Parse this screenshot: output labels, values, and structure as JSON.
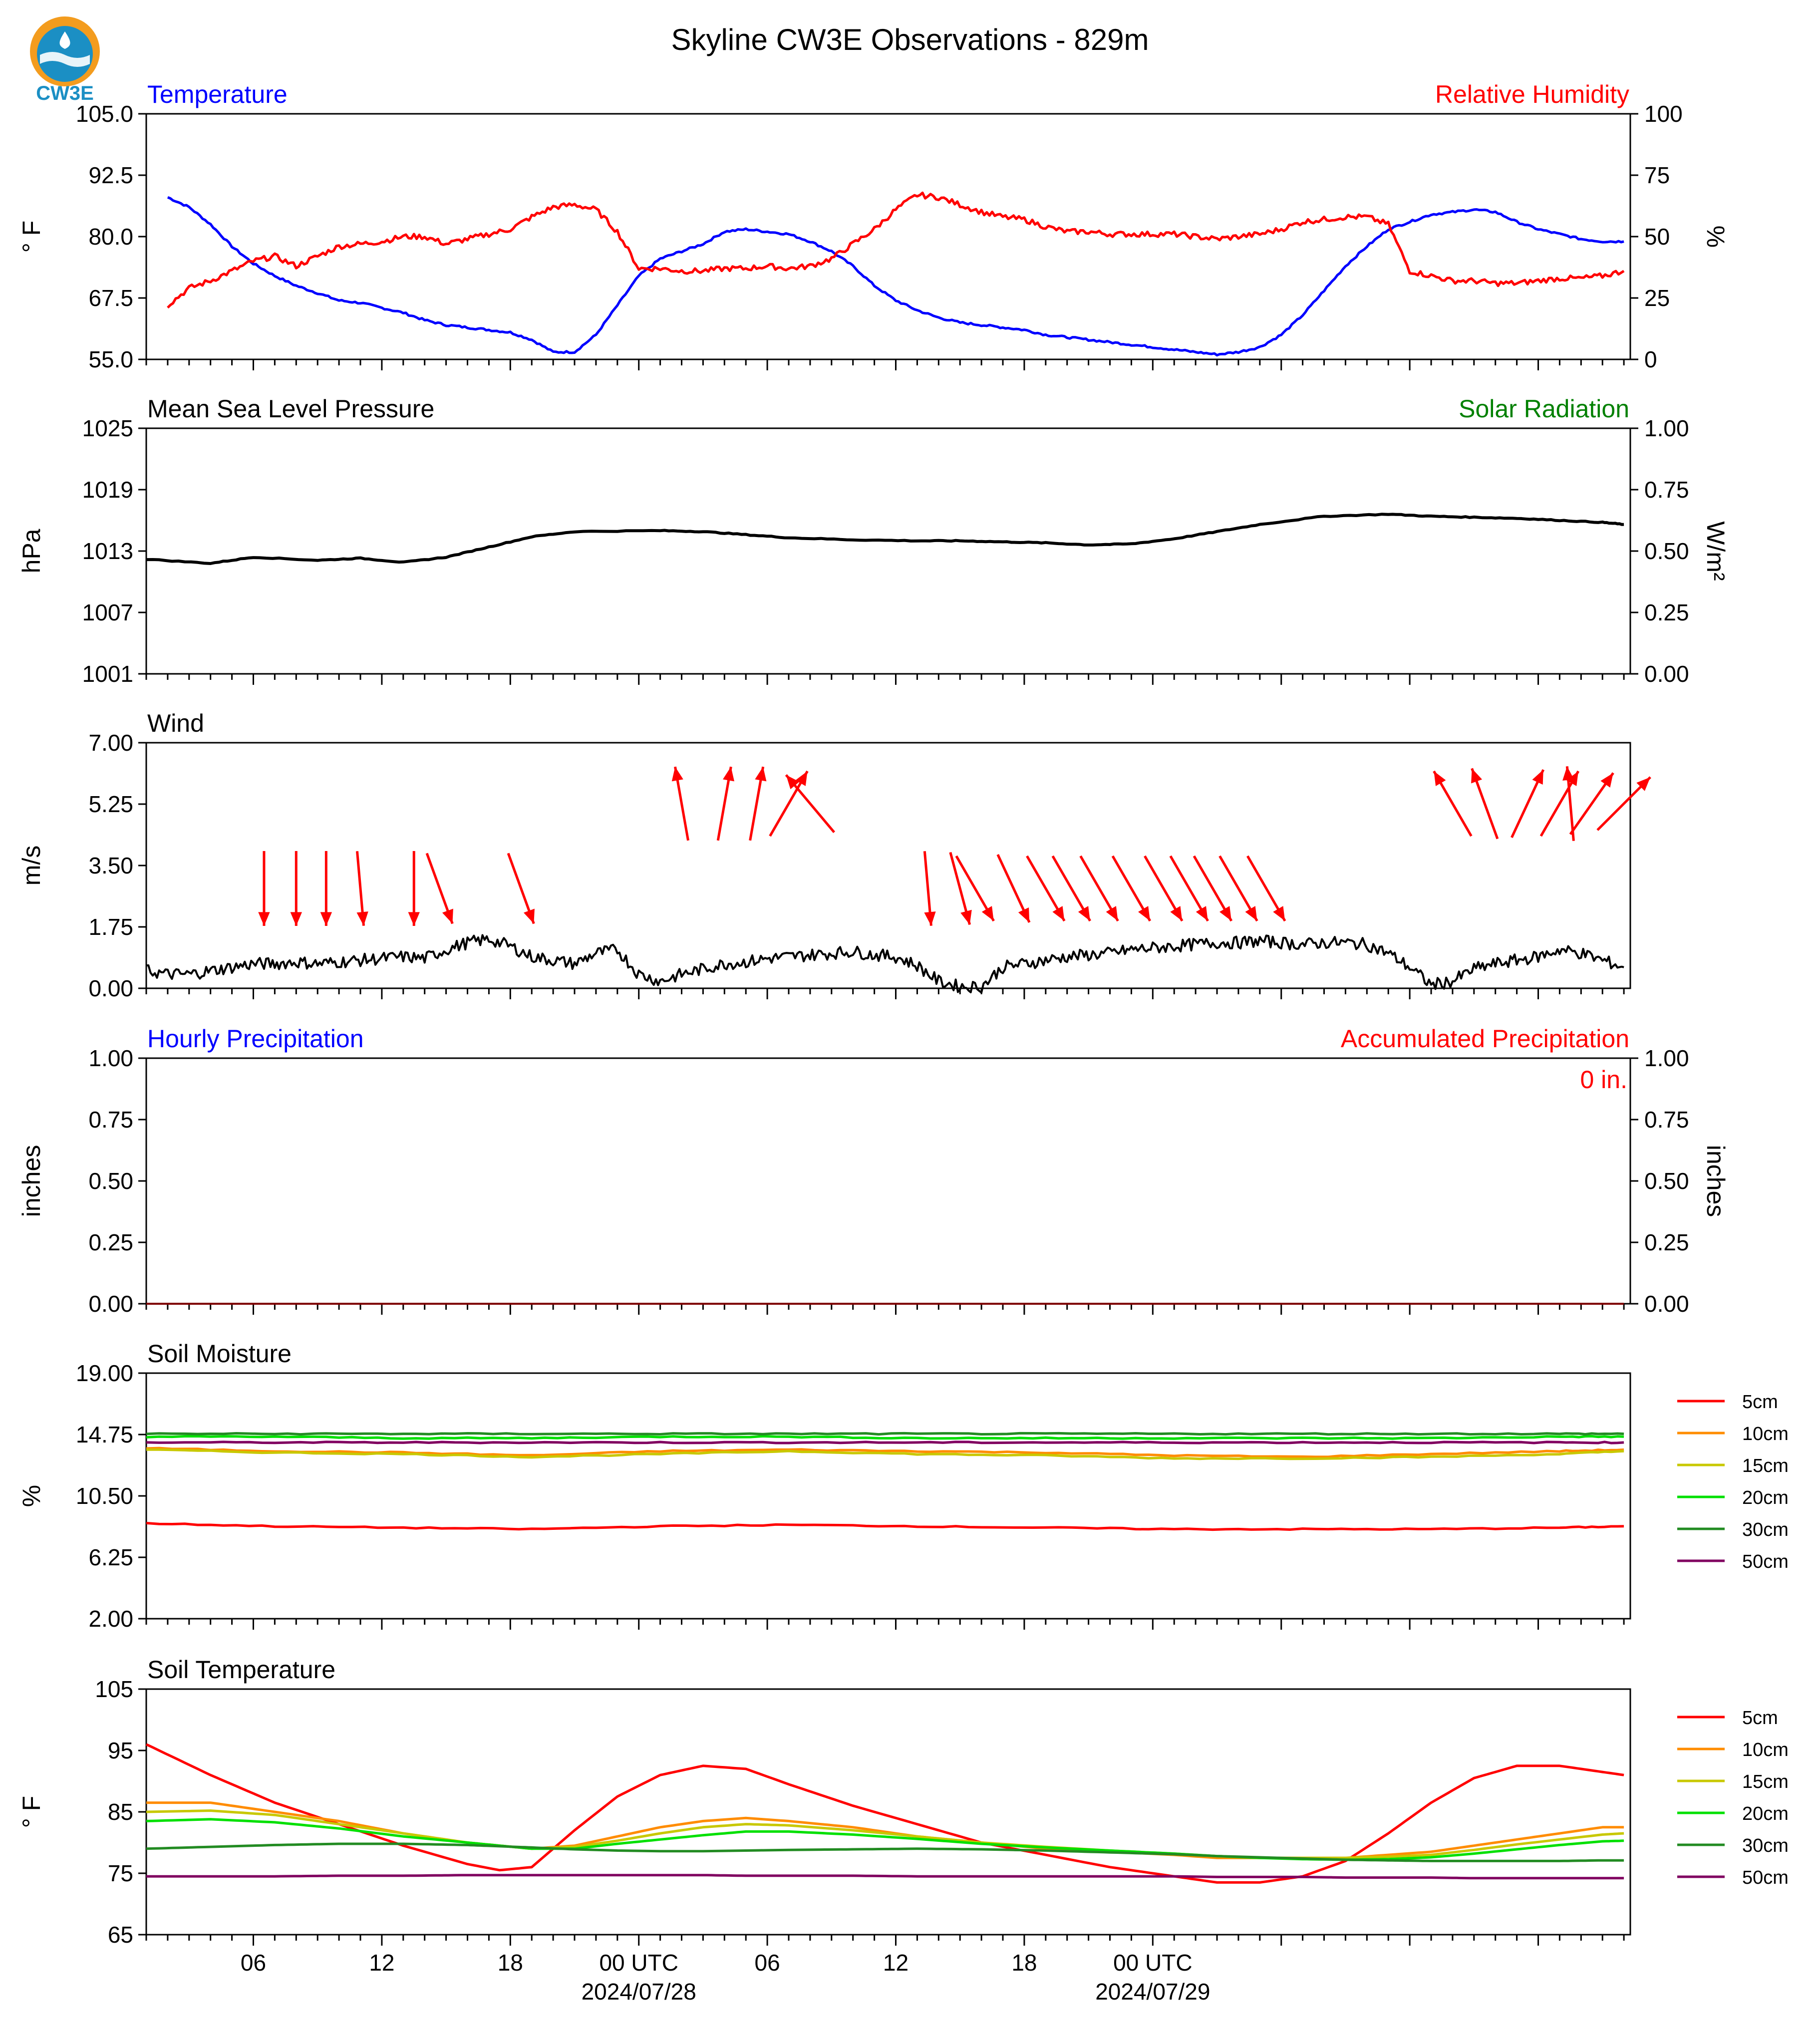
{
  "figure": {
    "title": "Skyline CW3E Observations - 829m",
    "logo_text": "CW3E",
    "x_tick_labels": [
      "06",
      "12",
      "18",
      "00 UTC",
      "06",
      "12",
      "18",
      "00 UTC"
    ],
    "x_date_labels": [
      "2024/07/28",
      "2024/07/29"
    ]
  },
  "colors": {
    "temperature": "#0000ff",
    "humidity": "#ff0000",
    "solar": "#008000",
    "black": "#000000",
    "5cm": "#ff0000",
    "10cm": "#ff8c00",
    "15cm": "#c8c800",
    "20cm": "#00e000",
    "30cm": "#228b22",
    "50cm": "#800060"
  },
  "chart_data": [
    {
      "type": "line",
      "title_left": "Temperature",
      "title_right": "Relative Humidity",
      "ylabel_left": "° F",
      "ylabel_right": "%",
      "ylim_left": [
        55,
        105
      ],
      "ylim_right": [
        0,
        100
      ],
      "yticks_left": [
        "55.0",
        "67.5",
        "80.0",
        "92.5",
        "105.0"
      ],
      "yticks_right": [
        "0",
        "25",
        "50",
        "75",
        "100"
      ],
      "x_hours": [
        1,
        2,
        3,
        4,
        5,
        6,
        7,
        8,
        9,
        10,
        11,
        12,
        13,
        14,
        15,
        16,
        17,
        18,
        19,
        20,
        21,
        22,
        23,
        24,
        25,
        26,
        27,
        28,
        29,
        30,
        31,
        32,
        33,
        34,
        35,
        36,
        37,
        38,
        39,
        40,
        41,
        42,
        43,
        44,
        45,
        46,
        47,
        48,
        49
      ],
      "series": [
        {
          "name": "Temperature",
          "axis": "left",
          "values": [
            88,
            86,
            82.5,
            78,
            74.5,
            72,
            70,
            68.5,
            67,
            66.5,
            65.5,
            64.5,
            63,
            62,
            61.5,
            61,
            60.5,
            59,
            56.5,
            56.5,
            60,
            66,
            72,
            75.5,
            77,
            78.5,
            81,
            81.5,
            81,
            80.5,
            79,
            77,
            74,
            70,
            67,
            65,
            63.5,
            62.5,
            62,
            61.5,
            61,
            60,
            59.5,
            59,
            58.5,
            58,
            57.5,
            57,
            56.5
          ]
        },
        {
          "name": "Relative Humidity",
          "axis": "right",
          "values": [
            22,
            29,
            32,
            36,
            40,
            42,
            38,
            42,
            46,
            47,
            48,
            50,
            50,
            47,
            49,
            51,
            53,
            58,
            62,
            63,
            61,
            52,
            37,
            37,
            36,
            36,
            37,
            37,
            38,
            37,
            38,
            41,
            47,
            53,
            61,
            67,
            66,
            63,
            60,
            58,
            57,
            54,
            52,
            52,
            51,
            51,
            51,
            51,
            50
          ]
        }
      ],
      "extra_x_hours": [
        50,
        51,
        52,
        53,
        54,
        55,
        56,
        57,
        58,
        59,
        60,
        61,
        62,
        63,
        64,
        65,
        66,
        67,
        68,
        69
      ],
      "extra_values": {
        "Temperature": [
          56,
          56.5,
          57.5,
          60,
          64,
          69,
          74,
          78,
          81.5,
          83,
          84.5,
          85,
          85.5,
          85,
          83,
          81.5,
          80.5,
          79.5,
          79,
          79
        ],
        "Relative Humidity": [
          49,
          50,
          51,
          53,
          56,
          57,
          58,
          58,
          55,
          36,
          34,
          32,
          32,
          31,
          31,
          32,
          33,
          33,
          34,
          36
        ]
      }
    },
    {
      "type": "line",
      "title_left": "Mean Sea Level Pressure",
      "title_right": "Solar Radiation",
      "ylabel_left": "hPa",
      "ylabel_right": "W/m²",
      "ylim_left": [
        1001,
        1025
      ],
      "ylim_right": [
        0,
        1
      ],
      "yticks_left": [
        "1001",
        "1007",
        "1013",
        "1019",
        "1025"
      ],
      "yticks_right": [
        "0.00",
        "0.25",
        "0.50",
        "0.75",
        "1.00"
      ],
      "x_hours": [
        0,
        3,
        5,
        8,
        10,
        12,
        14,
        16,
        18,
        20,
        24,
        26,
        28,
        30,
        33,
        36,
        38,
        40,
        42,
        44,
        46,
        48,
        50,
        52,
        55,
        58,
        60,
        62,
        64,
        66,
        68,
        69
      ],
      "series": [
        {
          "name": "Mean Sea Level Pressure",
          "axis": "left",
          "values": [
            1012.2,
            1011.8,
            1012.4,
            1012.1,
            1012.3,
            1011.9,
            1012.4,
            1013.4,
            1014.4,
            1014.9,
            1015.0,
            1014.9,
            1014.6,
            1014.3,
            1014.1,
            1014.0,
            1014.0,
            1013.9,
            1013.8,
            1013.6,
            1013.7,
            1014.2,
            1014.9,
            1015.6,
            1016.4,
            1016.6,
            1016.4,
            1016.3,
            1016.2,
            1016.0,
            1015.8,
            1015.6
          ]
        }
      ]
    },
    {
      "type": "line",
      "title_left": "Wind",
      "ylabel_left": "m/s",
      "ylim_left": [
        0,
        7
      ],
      "yticks_left": [
        "0.00",
        "1.75",
        "3.50",
        "5.25",
        "7.00"
      ],
      "x_hours": [
        0,
        1,
        2,
        3,
        4,
        5,
        6,
        7,
        8,
        9,
        10,
        11,
        12,
        13,
        14,
        15,
        16,
        17,
        18,
        19,
        20,
        21,
        22,
        23,
        24,
        25,
        26,
        27,
        28,
        29,
        30,
        31,
        32,
        33,
        34,
        35,
        36,
        37,
        38,
        39,
        40,
        41,
        42,
        43,
        44,
        45,
        46,
        47,
        48,
        49,
        50,
        51,
        52,
        53,
        54,
        55,
        56,
        57,
        58,
        59,
        60,
        61,
        62,
        63,
        64,
        65,
        66,
        67,
        68,
        69
      ],
      "series": [
        {
          "name": "Wind speed",
          "axis": "left",
          "values": [
            0.5,
            0.4,
            0.4,
            0.5,
            0.6,
            0.7,
            0.7,
            0.75,
            0.7,
            0.75,
            0.8,
            0.85,
            0.9,
            0.85,
            1.1,
            1.3,
            1.4,
            1.2,
            0.9,
            0.8,
            0.7,
            1.0,
            1.1,
            0.4,
            0.2,
            0.4,
            0.55,
            0.7,
            0.75,
            0.85,
            0.9,
            0.95,
            1.0,
            1.05,
            0.95,
            0.9,
            0.65,
            0.2,
            0.05,
            0.05,
            0.6,
            0.7,
            0.8,
            0.9,
            0.95,
            1.0,
            1.1,
            1.15,
            1.2,
            1.25,
            1.3,
            1.3,
            1.35,
            1.3,
            1.25,
            1.3,
            1.3,
            1.25,
            1.0,
            0.6,
            0.1,
            0.2,
            0.55,
            0.7,
            0.8,
            0.9,
            1.1,
            1.0,
            0.8,
            0.6
          ]
        }
      ],
      "barb_hours": [
        5.5,
        7,
        8.4,
        10,
        12.5,
        13.7,
        17.5,
        25,
        27,
        28.5,
        30,
        31,
        36.5,
        38,
        38.7,
        40.5,
        42,
        43.2,
        44.5,
        46,
        47.5,
        48.7,
        49.8,
        51,
        52.3,
        61,
        62.5,
        64.5,
        66,
        66.5,
        67.5,
        69
      ],
      "barb_dirs_deg": [
        180,
        180,
        180,
        175,
        180,
        160,
        160,
        350,
        10,
        10,
        30,
        320,
        175,
        165,
        150,
        155,
        150,
        150,
        150,
        150,
        150,
        150,
        150,
        150,
        150,
        330,
        340,
        25,
        30,
        355,
        35,
        45
      ]
    },
    {
      "type": "line",
      "title_left": "Hourly Precipitation",
      "title_right": "Accumulated Precipitation",
      "annotation": "0 in.",
      "ylabel_left": "inches",
      "ylabel_right": "inches",
      "ylim_left": [
        0,
        1
      ],
      "ylim_right": [
        0,
        1
      ],
      "yticks_left": [
        "0.00",
        "0.25",
        "0.50",
        "0.75",
        "1.00"
      ],
      "yticks_right": [
        "0.00",
        "0.25",
        "0.50",
        "0.75",
        "1.00"
      ],
      "x_hours": [
        0,
        69
      ],
      "series": [
        {
          "name": "Accumulated Precipitation",
          "axis": "left",
          "values": [
            0,
            0
          ]
        }
      ]
    },
    {
      "type": "line",
      "title_left": "Soil Moisture",
      "ylabel_left": "%",
      "ylim_left": [
        2,
        19
      ],
      "yticks_left": [
        "2.00",
        "6.25",
        "10.50",
        "14.75",
        "19.00"
      ],
      "legend": [
        "5cm",
        "10cm",
        "15cm",
        "20cm",
        "30cm",
        "50cm"
      ],
      "legend_placement": "right",
      "x_hours": [
        0,
        6,
        12,
        18,
        24,
        30,
        36,
        42,
        48,
        54,
        60,
        66,
        69
      ],
      "series": [
        {
          "name": "5cm",
          "values": [
            8.6,
            8.4,
            8.3,
            8.2,
            8.4,
            8.5,
            8.4,
            8.3,
            8.2,
            8.2,
            8.2,
            8.3,
            8.4
          ]
        },
        {
          "name": "10cm",
          "values": [
            13.8,
            13.6,
            13.5,
            13.3,
            13.6,
            13.7,
            13.6,
            13.5,
            13.3,
            13.2,
            13.4,
            13.6,
            13.7
          ]
        },
        {
          "name": "15cm",
          "values": [
            13.7,
            13.5,
            13.4,
            13.2,
            13.4,
            13.6,
            13.4,
            13.3,
            13.1,
            13.1,
            13.2,
            13.4,
            13.6
          ]
        },
        {
          "name": "20cm",
          "values": [
            14.6,
            14.6,
            14.5,
            14.5,
            14.6,
            14.6,
            14.5,
            14.5,
            14.5,
            14.5,
            14.5,
            14.6,
            14.6
          ]
        },
        {
          "name": "30cm",
          "values": [
            14.8,
            14.8,
            14.8,
            14.8,
            14.8,
            14.8,
            14.8,
            14.8,
            14.8,
            14.8,
            14.8,
            14.8,
            14.8
          ]
        },
        {
          "name": "50cm",
          "values": [
            14.2,
            14.2,
            14.2,
            14.2,
            14.2,
            14.2,
            14.2,
            14.2,
            14.2,
            14.2,
            14.2,
            14.2,
            14.2
          ]
        }
      ]
    },
    {
      "type": "line",
      "title_left": "Soil Temperature",
      "ylabel_left": "° F",
      "ylim_left": [
        65,
        105
      ],
      "yticks_left": [
        "65",
        "75",
        "85",
        "95",
        "105"
      ],
      "legend": [
        "5cm",
        "10cm",
        "15cm",
        "20cm",
        "30cm",
        "50cm"
      ],
      "legend_placement": "right",
      "x_hours": [
        0,
        3,
        6,
        9,
        12,
        15,
        16.5,
        18,
        20,
        22,
        24,
        26,
        28,
        30,
        33,
        36,
        39,
        42,
        45,
        48,
        50,
        52,
        54,
        56,
        58,
        60,
        62,
        64,
        66,
        68,
        69
      ],
      "series": [
        {
          "name": "5cm",
          "values": [
            96,
            91,
            86.5,
            83,
            79.5,
            76.5,
            75.5,
            76,
            82,
            87.5,
            91,
            92.5,
            92,
            89.5,
            86,
            83,
            80,
            78,
            76,
            74.5,
            73.5,
            73.5,
            74.5,
            77,
            81.5,
            86.5,
            90.5,
            92.5,
            92.5,
            91.5,
            91
          ]
        },
        {
          "name": "10cm",
          "values": [
            86.5,
            86.5,
            85,
            83.5,
            81.5,
            80,
            79.5,
            79,
            79.5,
            81,
            82.5,
            83.5,
            84,
            83.5,
            82.5,
            81,
            80,
            79,
            78.5,
            78,
            77.5,
            77.5,
            77.5,
            77.5,
            78,
            78.5,
            79.5,
            80.5,
            81.5,
            82.5,
            82.5
          ]
        },
        {
          "name": "15cm",
          "values": [
            85,
            85.2,
            84.5,
            83,
            81.5,
            80,
            79.5,
            79,
            79.3,
            80.3,
            81.5,
            82.5,
            83,
            82.8,
            82,
            81,
            80,
            79.3,
            78.7,
            78.2,
            77.8,
            77.5,
            77.5,
            77.5,
            77.7,
            78,
            78.8,
            79.7,
            80.5,
            81.3,
            81.5
          ]
        },
        {
          "name": "20cm",
          "values": [
            83.5,
            83.8,
            83.3,
            82.3,
            81,
            80,
            79.5,
            79,
            79,
            79.8,
            80.5,
            81.2,
            81.8,
            81.8,
            81.3,
            80.6,
            79.8,
            79.2,
            78.7,
            78.2,
            77.8,
            77.5,
            77.3,
            77.2,
            77.3,
            77.6,
            78.2,
            78.9,
            79.6,
            80.2,
            80.3
          ]
        },
        {
          "name": "30cm",
          "values": [
            79,
            79.3,
            79.6,
            79.8,
            79.8,
            79.6,
            79.4,
            79.2,
            78.9,
            78.7,
            78.6,
            78.6,
            78.7,
            78.8,
            78.9,
            79,
            78.9,
            78.7,
            78.4,
            78.1,
            77.8,
            77.6,
            77.4,
            77.2,
            77.1,
            77,
            77,
            77,
            77,
            77.1,
            77.1
          ]
        },
        {
          "name": "50cm",
          "values": [
            74.5,
            74.5,
            74.5,
            74.6,
            74.6,
            74.7,
            74.7,
            74.7,
            74.7,
            74.7,
            74.7,
            74.7,
            74.6,
            74.6,
            74.6,
            74.5,
            74.5,
            74.5,
            74.5,
            74.5,
            74.4,
            74.4,
            74.4,
            74.3,
            74.3,
            74.3,
            74.2,
            74.2,
            74.2,
            74.2,
            74.2
          ]
        }
      ]
    }
  ]
}
